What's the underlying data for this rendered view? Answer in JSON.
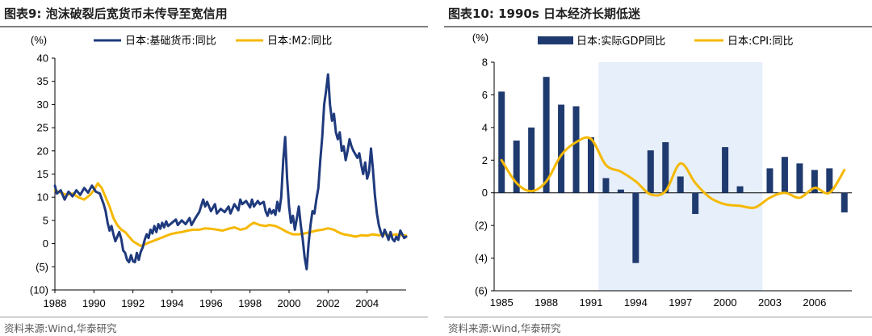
{
  "left": {
    "title": "图表9:  泡沫破裂后宽货币未传导至宽信用",
    "source": "资料来源:Wind,华泰研究",
    "chart_data": {
      "type": "line",
      "ylabel": "(%)",
      "ylim": [
        -10,
        40
      ],
      "yticks": [
        40,
        35,
        30,
        25,
        20,
        15,
        10,
        5,
        0,
        -5,
        -10
      ],
      "ytick_labels": [
        "40",
        "35",
        "30",
        "25",
        "20",
        "15",
        "10",
        "5",
        "0",
        "(5)",
        "(10)"
      ],
      "xlim": [
        1988,
        2006
      ],
      "xticks": [
        1988,
        1990,
        1992,
        1994,
        1996,
        1998,
        2000,
        2002,
        2004
      ],
      "xtick_labels": [
        "1988",
        "1990",
        "1992",
        "1994",
        "1996",
        "1998",
        "2000",
        "2002",
        "2004"
      ],
      "legend_position": "top",
      "series": [
        {
          "name": "日本:基础货币:同比",
          "color": "#1f3a7d",
          "points": [
            [
              1988.0,
              12.5
            ],
            [
              1988.1,
              10.8
            ],
            [
              1988.3,
              11.5
            ],
            [
              1988.5,
              9.5
            ],
            [
              1988.7,
              11.2
            ],
            [
              1988.9,
              10.2
            ],
            [
              1989.1,
              11.5
            ],
            [
              1989.3,
              10.5
            ],
            [
              1989.5,
              12.0
            ],
            [
              1989.7,
              11.0
            ],
            [
              1989.9,
              12.5
            ],
            [
              1990.1,
              11.2
            ],
            [
              1990.3,
              10.8
            ],
            [
              1990.5,
              8.5
            ],
            [
              1990.6,
              7.0
            ],
            [
              1990.7,
              4.5
            ],
            [
              1990.8,
              2.8
            ],
            [
              1990.9,
              3.8
            ],
            [
              1991.0,
              2.0
            ],
            [
              1991.1,
              0.5
            ],
            [
              1991.2,
              1.5
            ],
            [
              1991.3,
              2.5
            ],
            [
              1991.4,
              1.0
            ],
            [
              1991.5,
              -1.5
            ],
            [
              1991.6,
              -2.0
            ],
            [
              1991.7,
              -3.5
            ],
            [
              1991.8,
              -4.0
            ],
            [
              1991.9,
              -2.5
            ],
            [
              1992.0,
              -3.8
            ],
            [
              1992.1,
              -4.0
            ],
            [
              1992.2,
              -2.0
            ],
            [
              1992.3,
              -3.5
            ],
            [
              1992.4,
              -1.8
            ],
            [
              1992.5,
              -0.8
            ],
            [
              1992.6,
              0.8
            ],
            [
              1992.7,
              2.0
            ],
            [
              1992.8,
              1.2
            ],
            [
              1992.9,
              3.0
            ],
            [
              1993.0,
              2.2
            ],
            [
              1993.1,
              3.8
            ],
            [
              1993.2,
              2.5
            ],
            [
              1993.3,
              4.2
            ],
            [
              1993.4,
              3.2
            ],
            [
              1993.5,
              4.5
            ],
            [
              1993.6,
              3.5
            ],
            [
              1993.7,
              4.8
            ],
            [
              1993.8,
              3.8
            ],
            [
              1994.0,
              4.5
            ],
            [
              1994.2,
              5.2
            ],
            [
              1994.3,
              4.0
            ],
            [
              1994.5,
              5.0
            ],
            [
              1994.7,
              4.2
            ],
            [
              1994.9,
              5.5
            ],
            [
              1995.0,
              4.0
            ],
            [
              1995.2,
              5.5
            ],
            [
              1995.4,
              6.8
            ],
            [
              1995.5,
              8.2
            ],
            [
              1995.6,
              9.5
            ],
            [
              1995.7,
              8.0
            ],
            [
              1995.8,
              9.0
            ],
            [
              1996.0,
              7.0
            ],
            [
              1996.2,
              8.5
            ],
            [
              1996.3,
              6.5
            ],
            [
              1996.5,
              7.5
            ],
            [
              1996.7,
              6.8
            ],
            [
              1996.9,
              8.0
            ],
            [
              1997.0,
              6.5
            ],
            [
              1997.2,
              8.5
            ],
            [
              1997.4,
              7.2
            ],
            [
              1997.5,
              9.5
            ],
            [
              1997.6,
              8.5
            ],
            [
              1997.8,
              9.2
            ],
            [
              1998.0,
              7.8
            ],
            [
              1998.1,
              9.5
            ],
            [
              1998.2,
              8.0
            ],
            [
              1998.4,
              9.2
            ],
            [
              1998.5,
              8.5
            ],
            [
              1998.7,
              9.0
            ],
            [
              1998.8,
              7.0
            ],
            [
              1998.9,
              6.0
            ],
            [
              1999.0,
              7.5
            ],
            [
              1999.1,
              6.5
            ],
            [
              1999.2,
              7.2
            ],
            [
              1999.3,
              6.2
            ],
            [
              1999.4,
              9.0
            ],
            [
              1999.5,
              7.0
            ],
            [
              1999.6,
              10.0
            ],
            [
              1999.7,
              18.0
            ],
            [
              1999.8,
              23.0
            ],
            [
              1999.9,
              14.0
            ],
            [
              2000.0,
              8.0
            ],
            [
              2000.1,
              4.5
            ],
            [
              2000.2,
              6.0
            ],
            [
              2000.3,
              3.0
            ],
            [
              2000.4,
              5.5
            ],
            [
              2000.5,
              8.0
            ],
            [
              2000.6,
              4.0
            ],
            [
              2000.7,
              1.0
            ],
            [
              2000.8,
              -3.0
            ],
            [
              2000.9,
              -5.5
            ],
            [
              2001.0,
              0.0
            ],
            [
              2001.1,
              4.0
            ],
            [
              2001.2,
              7.0
            ],
            [
              2001.3,
              6.5
            ],
            [
              2001.4,
              9.5
            ],
            [
              2001.5,
              12.0
            ],
            [
              2001.6,
              18.0
            ],
            [
              2001.7,
              23.0
            ],
            [
              2001.8,
              30.0
            ],
            [
              2001.9,
              33.0
            ],
            [
              2002.0,
              36.5
            ],
            [
              2002.1,
              30.0
            ],
            [
              2002.2,
              26.5
            ],
            [
              2002.3,
              28.0
            ],
            [
              2002.4,
              24.0
            ],
            [
              2002.5,
              22.5
            ],
            [
              2002.6,
              24.0
            ],
            [
              2002.7,
              20.0
            ],
            [
              2002.8,
              21.0
            ],
            [
              2002.9,
              18.0
            ],
            [
              2003.0,
              20.0
            ],
            [
              2003.1,
              22.5
            ],
            [
              2003.2,
              21.0
            ],
            [
              2003.3,
              20.0
            ],
            [
              2003.5,
              18.5
            ],
            [
              2003.6,
              19.5
            ],
            [
              2003.7,
              17.0
            ],
            [
              2003.8,
              15.0
            ],
            [
              2003.9,
              17.5
            ],
            [
              2004.0,
              14.0
            ],
            [
              2004.1,
              15.5
            ],
            [
              2004.2,
              20.5
            ],
            [
              2004.3,
              16.0
            ],
            [
              2004.4,
              10.5
            ],
            [
              2004.5,
              6.5
            ],
            [
              2004.6,
              4.0
            ],
            [
              2004.7,
              2.5
            ],
            [
              2004.8,
              1.5
            ],
            [
              2004.9,
              3.0
            ],
            [
              2005.0,
              2.0
            ],
            [
              2005.1,
              0.8
            ],
            [
              2005.2,
              2.5
            ],
            [
              2005.3,
              1.0
            ],
            [
              2005.4,
              0.5
            ],
            [
              2005.5,
              1.5
            ],
            [
              2005.6,
              0.8
            ],
            [
              2005.7,
              2.8
            ],
            [
              2005.8,
              2.0
            ],
            [
              2005.9,
              1.2
            ],
            [
              2006.0,
              1.5
            ]
          ]
        },
        {
          "name": "日本:M2:同比",
          "color": "#f5b800",
          "points": [
            [
              1988.0,
              11.5
            ],
            [
              1988.3,
              11.0
            ],
            [
              1988.6,
              10.5
            ],
            [
              1988.9,
              10.8
            ],
            [
              1989.2,
              10.0
            ],
            [
              1989.5,
              9.5
            ],
            [
              1989.8,
              10.5
            ],
            [
              1990.0,
              11.5
            ],
            [
              1990.2,
              13.0
            ],
            [
              1990.4,
              12.0
            ],
            [
              1990.6,
              10.0
            ],
            [
              1990.8,
              8.0
            ],
            [
              1991.0,
              5.5
            ],
            [
              1991.2,
              4.0
            ],
            [
              1991.4,
              3.0
            ],
            [
              1991.6,
              2.5
            ],
            [
              1991.8,
              1.5
            ],
            [
              1992.0,
              0.5
            ],
            [
              1992.2,
              0.0
            ],
            [
              1992.4,
              -0.5
            ],
            [
              1992.6,
              -0.2
            ],
            [
              1992.8,
              0.2
            ],
            [
              1993.0,
              0.5
            ],
            [
              1993.3,
              1.0
            ],
            [
              1993.6,
              1.5
            ],
            [
              1993.9,
              2.0
            ],
            [
              1994.2,
              2.3
            ],
            [
              1994.5,
              2.5
            ],
            [
              1994.8,
              2.8
            ],
            [
              1995.1,
              3.0
            ],
            [
              1995.4,
              3.0
            ],
            [
              1995.7,
              3.3
            ],
            [
              1996.0,
              3.2
            ],
            [
              1996.3,
              3.0
            ],
            [
              1996.6,
              2.8
            ],
            [
              1996.9,
              3.2
            ],
            [
              1997.2,
              3.5
            ],
            [
              1997.5,
              3.0
            ],
            [
              1997.8,
              3.3
            ],
            [
              1998.0,
              4.0
            ],
            [
              1998.2,
              4.5
            ],
            [
              1998.5,
              4.0
            ],
            [
              1998.8,
              3.8
            ],
            [
              1999.0,
              4.0
            ],
            [
              1999.3,
              3.8
            ],
            [
              1999.6,
              3.2
            ],
            [
              1999.9,
              2.5
            ],
            [
              2000.2,
              2.0
            ],
            [
              2000.5,
              2.0
            ],
            [
              2000.8,
              2.2
            ],
            [
              2001.1,
              2.5
            ],
            [
              2001.4,
              2.8
            ],
            [
              2001.7,
              3.0
            ],
            [
              2002.0,
              3.3
            ],
            [
              2002.3,
              3.0
            ],
            [
              2002.5,
              2.5
            ],
            [
              2002.8,
              2.0
            ],
            [
              2003.1,
              1.8
            ],
            [
              2003.4,
              1.5
            ],
            [
              2003.7,
              1.8
            ],
            [
              2004.0,
              1.7
            ],
            [
              2004.3,
              2.0
            ],
            [
              2004.6,
              1.8
            ],
            [
              2004.9,
              2.0
            ],
            [
              2005.2,
              1.8
            ],
            [
              2005.5,
              2.0
            ],
            [
              2005.8,
              1.8
            ],
            [
              2006.0,
              1.7
            ]
          ]
        }
      ]
    }
  },
  "right": {
    "title": "图表10:  1990s 日本经济长期低迷",
    "source": "资料来源:Wind,华泰研究",
    "chart_data": {
      "type": "bar+line",
      "ylabel": "(%)",
      "ylim": [
        -6,
        8
      ],
      "yticks": [
        8,
        6,
        4,
        2,
        0,
        -2,
        -4,
        -6
      ],
      "ytick_labels": [
        "8",
        "6",
        "4",
        "2",
        "0",
        "(2)",
        "(4)",
        "(6)"
      ],
      "categories": [
        1985,
        1986,
        1987,
        1988,
        1989,
        1990,
        1991,
        1992,
        1993,
        1994,
        1995,
        1996,
        1997,
        1998,
        1999,
        2000,
        2001,
        2002,
        2003,
        2004,
        2005,
        2006,
        2007,
        2008
      ],
      "xtick_labels": [
        "1985",
        "1988",
        "1991",
        "1994",
        "1997",
        "2000",
        "2003",
        "2006"
      ],
      "shaded_range": [
        1991.5,
        2002.5
      ],
      "legend_position": "top",
      "series": [
        {
          "name": "日本:实际GDP同比",
          "type": "bar",
          "color": "#1f3a6e",
          "values": [
            6.2,
            3.2,
            4.0,
            7.1,
            5.4,
            5.3,
            3.4,
            0.9,
            0.2,
            -4.3,
            2.6,
            3.1,
            1.0,
            -1.3,
            0.0,
            2.8,
            0.4,
            0.0,
            1.5,
            2.2,
            1.8,
            1.4,
            1.5,
            -1.2
          ]
        },
        {
          "name": "日本:CPI:同比",
          "type": "line",
          "color": "#f5b800",
          "values": [
            2.0,
            0.6,
            0.1,
            0.7,
            2.3,
            3.1,
            3.3,
            1.7,
            1.3,
            0.7,
            -0.1,
            0.1,
            1.8,
            0.6,
            -0.3,
            -0.7,
            -0.8,
            -0.9,
            -0.3,
            0.0,
            -0.3,
            0.3,
            0.0,
            1.4
          ]
        }
      ]
    }
  }
}
